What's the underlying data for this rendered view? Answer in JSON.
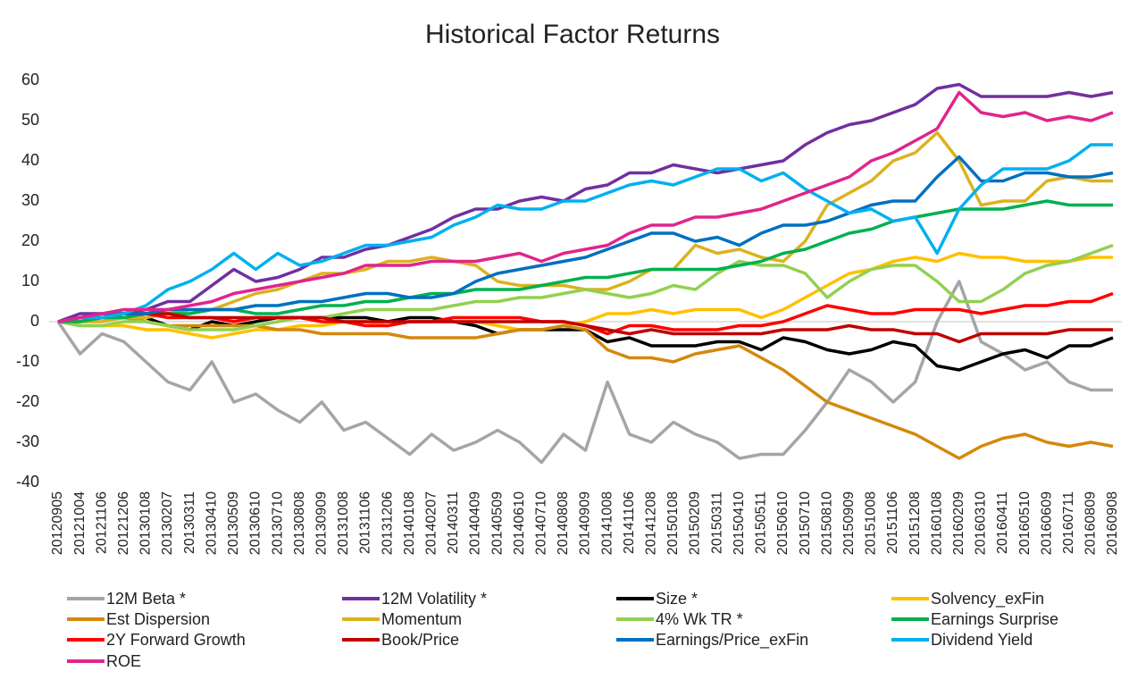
{
  "chart_data": {
    "type": "line",
    "title": "Historical Factor Returns",
    "categories": [
      "20120905",
      "20121004",
      "20121106",
      "20121206",
      "20130108",
      "20130207",
      "20130311",
      "20130410",
      "20130509",
      "20130610",
      "20130710",
      "20130808",
      "20130909",
      "20131008",
      "20131106",
      "20131206",
      "20140108",
      "20140207",
      "20140311",
      "20140409",
      "20140509",
      "20140610",
      "20140710",
      "20140808",
      "20140909",
      "20141008",
      "20141106",
      "20141208",
      "20150108",
      "20150209",
      "20150311",
      "20150410",
      "20150511",
      "20150610",
      "20150710",
      "20150810",
      "20150909",
      "20151008",
      "20151106",
      "20151208",
      "20160108",
      "20160209",
      "20160310",
      "20160411",
      "20160510",
      "20160609",
      "20160711",
      "20160809",
      "20160908"
    ],
    "ylim": [
      -40,
      60
    ],
    "yticks": [
      -40,
      -30,
      -20,
      -10,
      0,
      10,
      20,
      30,
      40,
      50,
      60
    ],
    "grid": false,
    "legend": "bottom",
    "series": [
      {
        "name": "12M Beta *",
        "color": "#a5a5a5",
        "values": [
          0,
          -8,
          -3,
          -5,
          -10,
          -15,
          -17,
          -10,
          -20,
          -18,
          -22,
          -25,
          -20,
          -27,
          -25,
          -29,
          -33,
          -28,
          -32,
          -30,
          -27,
          -30,
          -35,
          -28,
          -32,
          -15,
          -28,
          -30,
          -25,
          -28,
          -30,
          -34,
          -33,
          -33,
          -27,
          -20,
          -12,
          -15,
          -20,
          -15,
          0,
          10,
          -5,
          -8,
          -12,
          -10,
          -15,
          -17,
          -17
        ]
      },
      {
        "name": "12M Volatility *",
        "color": "#7030a0",
        "values": [
          0,
          2,
          2,
          2,
          3,
          5,
          5,
          9,
          13,
          10,
          11,
          13,
          16,
          16,
          18,
          19,
          21,
          23,
          26,
          28,
          28,
          30,
          31,
          30,
          33,
          34,
          37,
          37,
          39,
          38,
          37,
          38,
          39,
          40,
          44,
          47,
          49,
          50,
          52,
          54,
          58,
          59,
          56,
          56,
          56,
          56,
          57,
          56,
          57
        ]
      },
      {
        "name": "Size *",
        "color": "#000000",
        "values": [
          0,
          0,
          1,
          1,
          1,
          -1,
          -2,
          0,
          -1,
          0,
          1,
          1,
          1,
          1,
          1,
          0,
          1,
          1,
          0,
          -1,
          -3,
          -2,
          -2,
          -2,
          -2,
          -5,
          -4,
          -6,
          -6,
          -6,
          -5,
          -5,
          -7,
          -4,
          -5,
          -7,
          -8,
          -7,
          -5,
          -6,
          -11,
          -12,
          -10,
          -8,
          -7,
          -9,
          -6,
          -6,
          -4
        ]
      },
      {
        "name": "Solvency_exFin",
        "color": "#ffc000",
        "values": [
          0,
          -1,
          -1,
          -1,
          -2,
          -2,
          -3,
          -4,
          -3,
          -2,
          -2,
          -1,
          -1,
          0,
          0,
          -1,
          0,
          0,
          0,
          0,
          -1,
          -2,
          -2,
          -1,
          0,
          2,
          2,
          3,
          2,
          3,
          3,
          3,
          1,
          3,
          6,
          9,
          12,
          13,
          15,
          16,
          15,
          17,
          16,
          16,
          15,
          15,
          15,
          16,
          16
        ]
      },
      {
        "name": "Est Dispersion",
        "color": "#d4880c",
        "values": [
          0,
          0,
          1,
          1,
          0,
          -1,
          -1,
          -1,
          -1,
          -1,
          -2,
          -2,
          -3,
          -3,
          -3,
          -3,
          -4,
          -4,
          -4,
          -4,
          -3,
          -2,
          -2,
          -1,
          -2,
          -7,
          -9,
          -9,
          -10,
          -8,
          -7,
          -6,
          -9,
          -12,
          -16,
          -20,
          -22,
          -24,
          -26,
          -28,
          -31,
          -34,
          -31,
          -29,
          -28,
          -30,
          -31,
          -30,
          -31
        ]
      },
      {
        "name": "Momentum",
        "color": "#dbb21e",
        "values": [
          0,
          0,
          0,
          1,
          1,
          2,
          3,
          3,
          5,
          7,
          8,
          10,
          12,
          12,
          13,
          15,
          15,
          16,
          15,
          14,
          10,
          9,
          9,
          9,
          8,
          8,
          10,
          13,
          13,
          19,
          17,
          18,
          16,
          15,
          20,
          29,
          32,
          35,
          40,
          42,
          47,
          40,
          29,
          30,
          30,
          35,
          36,
          35,
          35
        ]
      },
      {
        "name": "4% Wk TR *",
        "color": "#92d050",
        "values": [
          0,
          -1,
          -1,
          0,
          0,
          -1,
          -2,
          -2,
          -2,
          -1,
          0,
          1,
          1,
          2,
          3,
          3,
          3,
          3,
          4,
          5,
          5,
          6,
          6,
          7,
          8,
          7,
          6,
          7,
          9,
          8,
          12,
          15,
          14,
          14,
          12,
          6,
          10,
          13,
          14,
          14,
          10,
          5,
          5,
          8,
          12,
          14,
          15,
          17,
          19
        ]
      },
      {
        "name": "Earnings Surprise",
        "color": "#00b050",
        "values": [
          0,
          0,
          1,
          1,
          2,
          2,
          2,
          3,
          3,
          2,
          2,
          3,
          4,
          4,
          5,
          5,
          6,
          7,
          7,
          8,
          8,
          8,
          9,
          10,
          11,
          11,
          12,
          13,
          13,
          13,
          13,
          14,
          15,
          17,
          18,
          20,
          22,
          23,
          25,
          26,
          27,
          28,
          28,
          28,
          29,
          30,
          29,
          29,
          29
        ]
      },
      {
        "name": "2Y Forward Growth",
        "color": "#ff0000",
        "values": [
          0,
          1,
          1,
          2,
          2,
          1,
          1,
          1,
          0,
          1,
          1,
          1,
          0,
          0,
          -1,
          -1,
          0,
          0,
          1,
          1,
          1,
          1,
          0,
          0,
          -1,
          -3,
          -1,
          -1,
          -2,
          -2,
          -2,
          -1,
          -1,
          0,
          2,
          4,
          3,
          2,
          2,
          3,
          3,
          3,
          2,
          3,
          4,
          4,
          5,
          5,
          7
        ]
      },
      {
        "name": "Book/Price",
        "color": "#c00000",
        "values": [
          0,
          1,
          2,
          2,
          2,
          2,
          1,
          1,
          1,
          1,
          1,
          1,
          1,
          0,
          0,
          0,
          0,
          0,
          0,
          0,
          0,
          0,
          0,
          0,
          -1,
          -2,
          -3,
          -2,
          -3,
          -3,
          -3,
          -3,
          -3,
          -2,
          -2,
          -2,
          -1,
          -2,
          -2,
          -3,
          -3,
          -5,
          -3,
          -3,
          -3,
          -3,
          -2,
          -2,
          -2
        ]
      },
      {
        "name": "Earnings/Price_exFin",
        "color": "#0070c0",
        "values": [
          0,
          1,
          2,
          2,
          2,
          3,
          3,
          3,
          3,
          4,
          4,
          5,
          5,
          6,
          7,
          7,
          6,
          6,
          7,
          10,
          12,
          13,
          14,
          15,
          16,
          18,
          20,
          22,
          22,
          20,
          21,
          19,
          22,
          24,
          24,
          25,
          27,
          29,
          30,
          30,
          36,
          41,
          35,
          35,
          37,
          37,
          36,
          36,
          37
        ]
      },
      {
        "name": "Dividend Yield",
        "color": "#00b0f0",
        "values": [
          0,
          1,
          1,
          2,
          4,
          8,
          10,
          13,
          17,
          13,
          17,
          14,
          15,
          17,
          19,
          19,
          20,
          21,
          24,
          26,
          29,
          28,
          28,
          30,
          30,
          32,
          34,
          35,
          34,
          36,
          38,
          38,
          35,
          37,
          33,
          30,
          27,
          28,
          25,
          26,
          17,
          28,
          34,
          38,
          38,
          38,
          40,
          44,
          44
        ]
      },
      {
        "name": "ROE",
        "color": "#e0258c",
        "values": [
          0,
          1,
          2,
          3,
          3,
          3,
          4,
          5,
          7,
          8,
          9,
          10,
          11,
          12,
          14,
          14,
          14,
          15,
          15,
          15,
          16,
          17,
          15,
          17,
          18,
          19,
          22,
          24,
          24,
          26,
          26,
          27,
          28,
          30,
          32,
          34,
          36,
          40,
          42,
          45,
          48,
          57,
          52,
          51,
          52,
          50,
          51,
          50,
          52
        ]
      }
    ]
  }
}
